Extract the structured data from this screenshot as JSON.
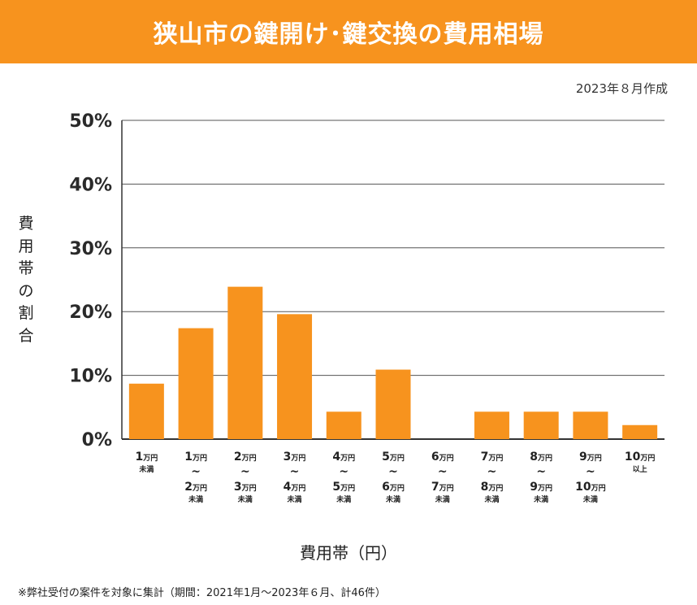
{
  "header": {
    "title": "狭山市の鍵開け･鍵交換の費用相場"
  },
  "date_note": "2023年８月作成",
  "footnote": "※弊社受付の案件を対象に集計（期間：2021年1月～2023年６月、計46件）",
  "colors": {
    "accent": "#f7931e",
    "bar": "#f7931e",
    "grid": "#555555"
  },
  "chart_data": {
    "type": "bar",
    "title": "狭山市の鍵開け･鍵交換の費用相場",
    "xlabel": "費用帯（円）",
    "ylabel": "費用帯の割合",
    "ylim": [
      0,
      50
    ],
    "yticks": [
      "0%",
      "10%",
      "20%",
      "30%",
      "40%",
      "50%"
    ],
    "grid": true,
    "categories": [
      "1万円未満",
      "1万円～2万円未満",
      "2万円～3万円未満",
      "3万円～4万円未満",
      "4万円～5万円未満",
      "5万円～6万円未満",
      "6万円～7万円未満",
      "7万円～8万円未満",
      "8万円～9万円未満",
      "9万円～10万円未満",
      "10万円以上"
    ],
    "category_labels": [
      {
        "from": "1",
        "unit": "万円",
        "tail": "未満"
      },
      {
        "from": "1",
        "to": "2",
        "unit": "万円",
        "tail": "未満"
      },
      {
        "from": "2",
        "to": "3",
        "unit": "万円",
        "tail": "未満"
      },
      {
        "from": "3",
        "to": "4",
        "unit": "万円",
        "tail": "未満"
      },
      {
        "from": "4",
        "to": "5",
        "unit": "万円",
        "tail": "未満"
      },
      {
        "from": "5",
        "to": "6",
        "unit": "万円",
        "tail": "未満"
      },
      {
        "from": "6",
        "to": "7",
        "unit": "万円",
        "tail": "未満"
      },
      {
        "from": "7",
        "to": "8",
        "unit": "万円",
        "tail": "未満"
      },
      {
        "from": "8",
        "to": "9",
        "unit": "万円",
        "tail": "未満"
      },
      {
        "from": "9",
        "to": "10",
        "unit": "万円",
        "tail": "未満"
      },
      {
        "from": "10",
        "unit": "万円",
        "tail": "以上"
      }
    ],
    "tilde": "~",
    "values": [
      8.7,
      17.4,
      23.9,
      19.6,
      4.3,
      10.9,
      0,
      4.3,
      4.3,
      4.3,
      2.2
    ]
  }
}
